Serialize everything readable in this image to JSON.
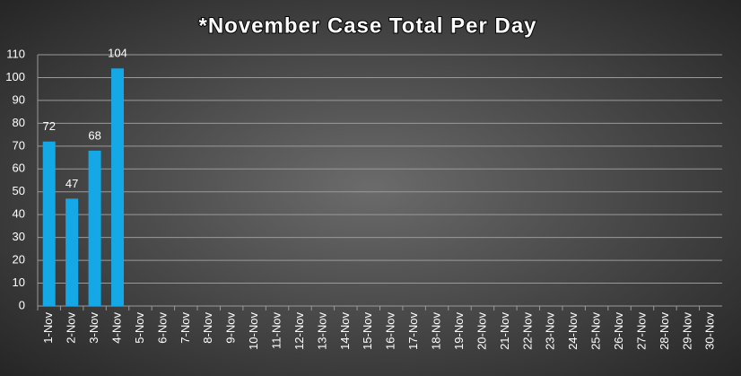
{
  "chart_data": {
    "type": "bar",
    "title": "*November Case Total Per Day",
    "categories": [
      "1-Nov",
      "2-Nov",
      "3-Nov",
      "4-Nov",
      "5-Nov",
      "6-Nov",
      "7-Nov",
      "8-Nov",
      "9-Nov",
      "10-Nov",
      "11-Nov",
      "12-Nov",
      "13-Nov",
      "14-Nov",
      "15-Nov",
      "16-Nov",
      "17-Nov",
      "18-Nov",
      "19-Nov",
      "20-Nov",
      "21-Nov",
      "22-Nov",
      "23-Nov",
      "24-Nov",
      "25-Nov",
      "26-Nov",
      "27-Nov",
      "28-Nov",
      "29-Nov",
      "30-Nov"
    ],
    "values": [
      72,
      47,
      68,
      104,
      null,
      null,
      null,
      null,
      null,
      null,
      null,
      null,
      null,
      null,
      null,
      null,
      null,
      null,
      null,
      null,
      null,
      null,
      null,
      null,
      null,
      null,
      null,
      null,
      null,
      null
    ],
    "color": "#14a8e6",
    "ylim": [
      0,
      110
    ],
    "yticks": [
      0,
      10,
      20,
      30,
      40,
      50,
      60,
      70,
      80,
      90,
      100,
      110
    ],
    "grid": true
  }
}
